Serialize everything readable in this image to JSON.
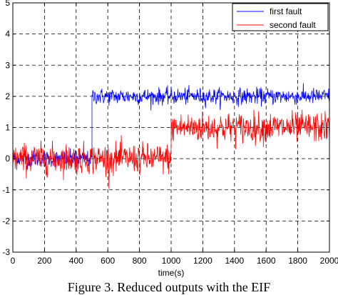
{
  "chart_data": {
    "type": "line",
    "title": "",
    "xlabel": "time(s)",
    "ylabel": "",
    "xlim": [
      0,
      2000
    ],
    "ylim": [
      -3,
      5
    ],
    "grid": true,
    "grid_style": "dashed",
    "legend_position": "top-right",
    "x_ticks": [
      0,
      200,
      400,
      600,
      800,
      1000,
      1200,
      1400,
      1600,
      1800,
      2000
    ],
    "y_ticks": [
      -3,
      -2,
      -1,
      0,
      1,
      2,
      3,
      4,
      5
    ],
    "x_tick_labels": [
      "0",
      "200",
      "400",
      "600",
      "800",
      "1000",
      "1200",
      "1400",
      "1600",
      "1800",
      "2000"
    ],
    "y_tick_labels": [
      "-3",
      "-2",
      "-1",
      "0",
      "1",
      "2",
      "3",
      "4",
      "5"
    ],
    "series": [
      {
        "name": "first fault",
        "color": "#0000ff",
        "x": [
          0,
          490,
          490,
          500,
          500,
          2000
        ],
        "y": [
          0,
          0,
          0,
          0,
          2,
          2
        ],
        "noise_std": 0.13,
        "segments": [
          {
            "x_start": 0,
            "x_end": 500,
            "mean": 0
          },
          {
            "x_start": 500,
            "x_end": 2000,
            "mean": 2
          }
        ]
      },
      {
        "name": "second fault",
        "color": "#ff0000",
        "x": [
          0,
          1000,
          1000,
          2000
        ],
        "y": [
          0,
          0,
          1,
          1
        ],
        "noise_std": 0.24,
        "segments": [
          {
            "x_start": 0,
            "x_end": 1000,
            "mean": 0
          },
          {
            "x_start": 1000,
            "x_end": 2000,
            "mean": 1
          }
        ]
      }
    ]
  },
  "caption": {
    "text": "Figure 3. Reduced outputs with the EIF"
  }
}
